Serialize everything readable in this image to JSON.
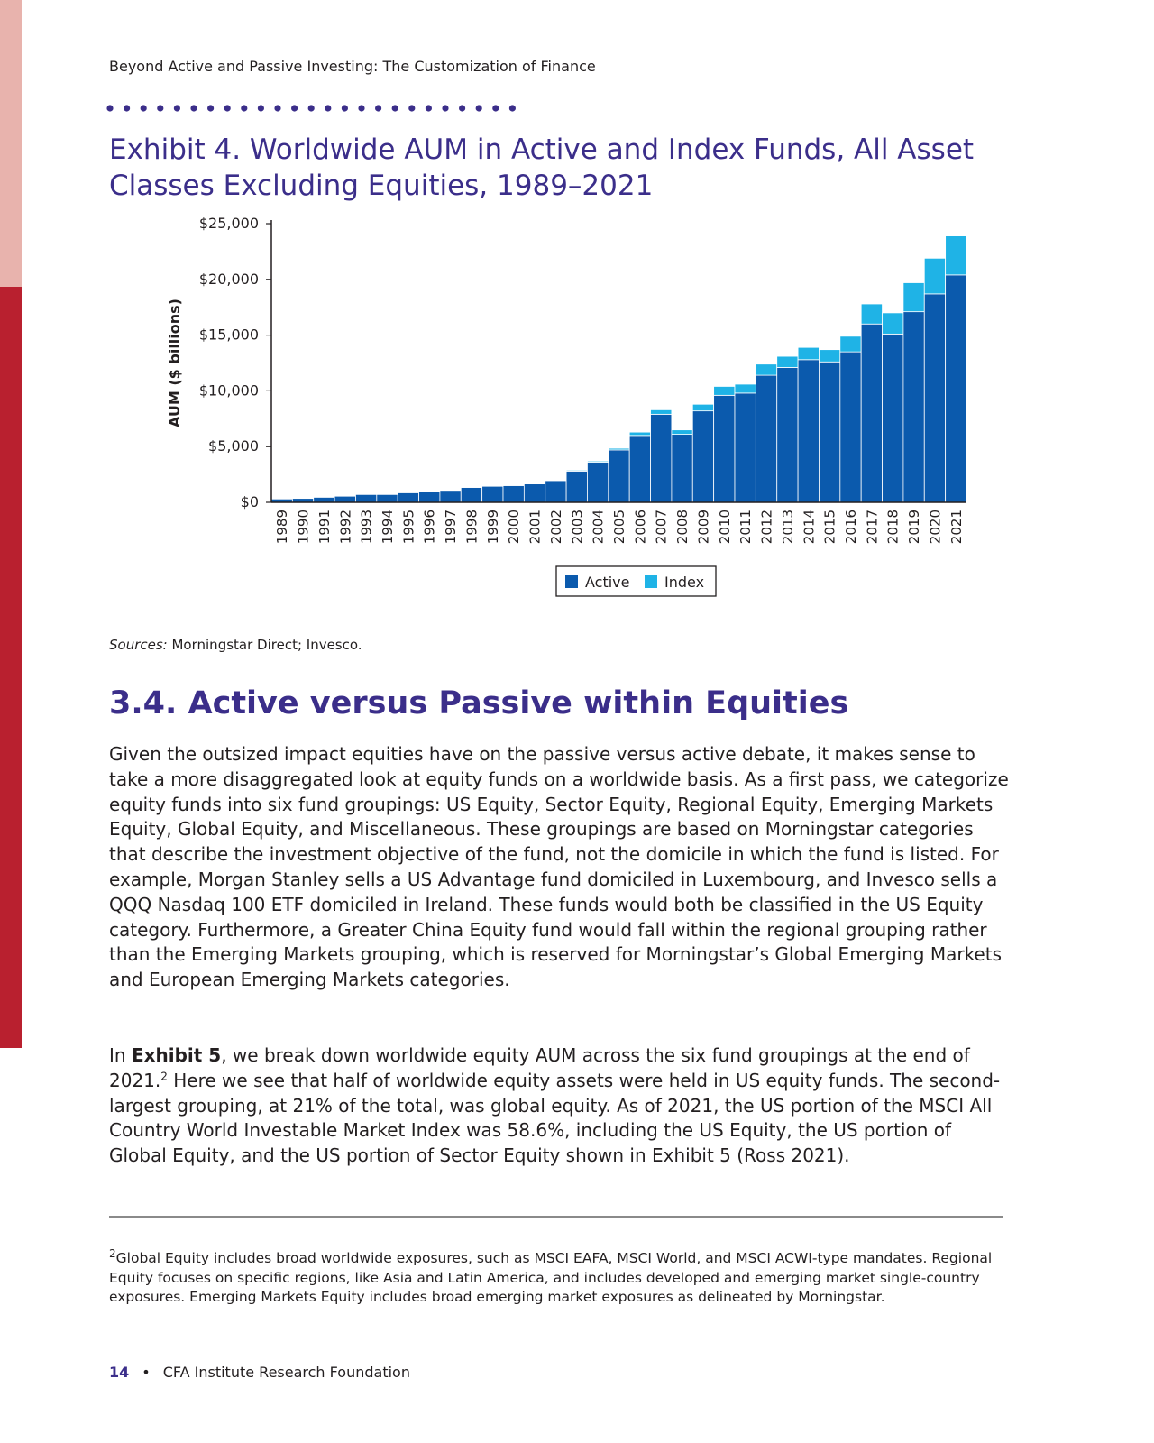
{
  "running_head": "Beyond Active and Passive Investing: The Customization of Finance",
  "exhibit_title": "Exhibit 4. Worldwide AUM in Active and Index Funds, All Asset Classes Excluding Equities, 1989–2021",
  "colors": {
    "active": "#0b5aad",
    "index": "#1fb3e6",
    "accent": "#3b2e8a",
    "sidebar_red": "#b9202f",
    "sidebar_pink": "#e8b3ad"
  },
  "chart_data": {
    "type": "bar",
    "stacked": true,
    "ylabel": "AUM ($ billions)",
    "ylim": [
      0,
      25000
    ],
    "yticks": [
      "$0",
      "$5,000",
      "$10,000",
      "$15,000",
      "$20,000",
      "$25,000"
    ],
    "legend_position": "bottom-center",
    "categories": [
      "1989",
      "1990",
      "1991",
      "1992",
      "1993",
      "1994",
      "1995",
      "1996",
      "1997",
      "1998",
      "1999",
      "2000",
      "2001",
      "2002",
      "2003",
      "2004",
      "2005",
      "2006",
      "2007",
      "2008",
      "2009",
      "2010",
      "2011",
      "2012",
      "2013",
      "2014",
      "2015",
      "2016",
      "2017",
      "2018",
      "2019",
      "2020",
      "2021"
    ],
    "series": [
      {
        "name": "Active",
        "values": [
          300,
          350,
          450,
          550,
          700,
          700,
          850,
          950,
          1100,
          1350,
          1450,
          1500,
          1650,
          1950,
          2800,
          3600,
          4700,
          6000,
          7900,
          6100,
          8200,
          9600,
          9800,
          11400,
          12100,
          12800,
          12600,
          13500,
          16000,
          15100,
          17100,
          18700,
          20400
        ]
      },
      {
        "name": "Index",
        "values": [
          0,
          0,
          0,
          0,
          0,
          0,
          0,
          0,
          10,
          20,
          30,
          40,
          50,
          60,
          80,
          100,
          150,
          300,
          400,
          400,
          600,
          800,
          800,
          1000,
          1000,
          1100,
          1100,
          1400,
          1800,
          1900,
          2600,
          3200,
          3500
        ]
      }
    ]
  },
  "sources": {
    "label": "Sources:",
    "text": " Morningstar Direct; Invesco."
  },
  "section_title": "3.4. Active versus Passive within Equities",
  "paragraph1": "Given the outsized impact equities have on the passive versus active debate, it makes sense to take a more disaggregated look at equity funds on a worldwide basis. As a first pass, we categorize equity funds into six fund groupings: US Equity, Sector Equity, Regional Equity, Emerging Markets Equity, Global Equity, and Miscellaneous. These groupings are based on Morningstar categories that describe the investment objective of the fund, not the domicile in which the fund is listed. For example, Morgan Stanley sells a US Advantage fund domiciled in Luxembourg, and Invesco sells a QQQ Nasdaq 100 ETF domiciled in Ireland. These funds would both be classified in the US Equity category. Furthermore, a Greater China Equity fund would fall within the regional grouping rather than the Emerging Markets grouping, which is reserved for Morningstar’s Global Emerging Markets and European Emerging Markets categories.",
  "paragraph2": {
    "pre": "In ",
    "bold": "Exhibit 5",
    "mid": ", we break down worldwide equity AUM across the six fund groupings at the end of 2021.",
    "sup": "2",
    "post": " Here we see that half of worldwide equity assets were held in US equity funds. The second-largest grouping, at 21% of the total, was global equity. As of 2021, the US portion of the MSCI All Country World Investable Market Index was 58.6%, including the US Equity, the US portion of Global Equity, and the US portion of Sector Equity shown in Exhibit 5 (Ross 2021)."
  },
  "footnote": {
    "mark": "2",
    "text": "Global Equity includes broad worldwide exposures, such as MSCI EAFA, MSCI World, and MSCI ACWI-type mandates. Regional Equity focuses on specific regions, like Asia and Latin America, and includes developed and emerging market single-country exposures. Emerging Markets Equity includes broad emerging market exposures as delineated by Morningstar."
  },
  "footer": {
    "page_number": "14",
    "bullet": "•",
    "publisher": "CFA Institute Research Foundation"
  }
}
